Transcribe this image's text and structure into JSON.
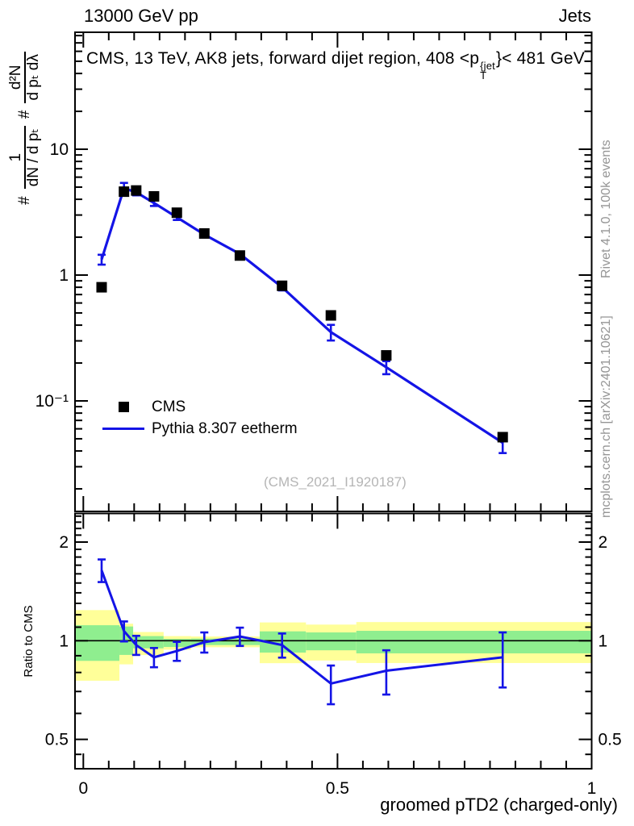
{
  "header": {
    "left": "13000 GeV pp",
    "right": "Jets"
  },
  "title": {
    "part1": "CMS, 13 TeV, AK8 jets, forward dijet region, 408 <p",
    "sup": "{jet",
    "sub": "T",
    "part2": "}< 481 GeV"
  },
  "y_axis_label": {
    "hash1": "#",
    "frac1_num": "1",
    "frac1_den": "dN / d pₜ",
    "hash2": "#",
    "frac2_num": "d²N",
    "frac2_den": "d pₜ dλ"
  },
  "ratio_axis_label": "Ratio to CMS",
  "x_axis_title": "groomed pTD2 (charged-only)",
  "right_margin_notes": {
    "top": "Rivet 4.1.0,  100k events",
    "bottom": "mcplots.cern.ch [arXiv:2401.10621]"
  },
  "watermark": "(CMS_2021_I1920187)",
  "legend": {
    "items": [
      {
        "label": "CMS",
        "marker": "black-square"
      },
      {
        "label": "Pythia 8.307 eetherm",
        "marker": "blue-line"
      }
    ]
  },
  "colors": {
    "mc_line": "#1414e6",
    "data_marker": "#000000",
    "band_yellow": "#ffff99",
    "band_green": "#8fee8f",
    "gray_text": "#959595",
    "watermark": "#b5b5b5"
  },
  "chart_data": [
    {
      "type": "line",
      "panel": "main",
      "title": "CMS, 13 TeV, AK8 jets, forward dijet region, 408 <p_T^{jet}< 481 GeV",
      "yscale": "log",
      "xlim": [
        0,
        1
      ],
      "ylim": [
        0.0134,
        85
      ],
      "grid": false,
      "legend_position": "left-middle",
      "ytick_labels": [
        {
          "v": 10,
          "label": "10"
        },
        {
          "v": 1,
          "label": "1"
        },
        {
          "v": 0.1,
          "label": "10⁻¹"
        }
      ],
      "x": [
        0.036,
        0.08,
        0.104,
        0.139,
        0.184,
        0.238,
        0.308,
        0.391,
        0.487,
        0.596,
        0.825
      ],
      "series": [
        {
          "name": "CMS",
          "style": "square-markers",
          "color": "#000000",
          "values": [
            0.8,
            4.6,
            4.7,
            4.22,
            3.13,
            2.14,
            1.43,
            0.822,
            0.478,
            0.23,
            0.0515
          ]
        },
        {
          "name": "Pythia 8.307 eetherm",
          "style": "line-with-errorbars",
          "color": "#1414e6",
          "values": [
            1.33,
            4.9,
            4.55,
            3.74,
            2.88,
            2.1,
            1.47,
            0.8,
            0.352,
            0.185,
            0.0465
          ],
          "errors": [
            0.12,
            0.5,
            0.25,
            0.2,
            0.14,
            0.09,
            0.06,
            0.045,
            0.05,
            0.022,
            0.008
          ]
        }
      ]
    },
    {
      "type": "line",
      "panel": "ratio",
      "ylabel": "Ratio to CMS",
      "xlabel": "groomed pTD2 (charged-only)",
      "yscale": "log",
      "xlim": [
        0,
        1
      ],
      "ylim": [
        0.41,
        2.44
      ],
      "reference_line": 1,
      "ytick_labels": [
        {
          "v": 2,
          "label": "2"
        },
        {
          "v": 1,
          "label": "1"
        },
        {
          "v": 0.5,
          "label": "0.5"
        }
      ],
      "xtick_labels": [
        {
          "v": 0,
          "label": "0"
        },
        {
          "v": 0.5,
          "label": "0.5"
        },
        {
          "v": 1,
          "label": "1"
        }
      ],
      "x": [
        0.036,
        0.08,
        0.104,
        0.139,
        0.184,
        0.238,
        0.308,
        0.391,
        0.487,
        0.596,
        0.825
      ],
      "values": [
        1.64,
        1.07,
        0.97,
        0.89,
        0.93,
        0.99,
        1.03,
        0.97,
        0.74,
        0.81,
        0.89
      ],
      "errors": [
        0.13,
        0.075,
        0.065,
        0.06,
        0.062,
        0.07,
        0.066,
        0.082,
        0.1,
        0.125,
        0.17
      ],
      "bands": [
        {
          "x0": -0.016,
          "x1": 0.071,
          "yellow": [
            0.755,
            1.24
          ],
          "green": [
            0.868,
            1.115
          ]
        },
        {
          "x0": 0.071,
          "x1": 0.098,
          "yellow": [
            0.847,
            1.127
          ],
          "green": [
            0.905,
            1.105
          ]
        },
        {
          "x0": 0.098,
          "x1": 0.158,
          "yellow": [
            0.904,
            1.063
          ],
          "green": [
            0.948,
            1.033
          ]
        },
        {
          "x0": 0.158,
          "x1": 0.212,
          "yellow": [
            0.939,
            1.033
          ],
          "green": [
            0.957,
            1.013
          ]
        },
        {
          "x0": 0.212,
          "x1": 0.347,
          "yellow": [
            0.955,
            1.03
          ],
          "green": [
            0.97,
            1.015
          ]
        },
        {
          "x0": 0.347,
          "x1": 0.438,
          "yellow": [
            0.854,
            1.137
          ],
          "green": [
            0.92,
            1.068
          ]
        },
        {
          "x0": 0.438,
          "x1": 0.537,
          "yellow": [
            0.87,
            1.12
          ],
          "green": [
            0.935,
            1.06
          ]
        },
        {
          "x0": 0.537,
          "x1": 1.0,
          "yellow": [
            0.855,
            1.14
          ],
          "green": [
            0.915,
            1.072
          ]
        }
      ]
    }
  ]
}
